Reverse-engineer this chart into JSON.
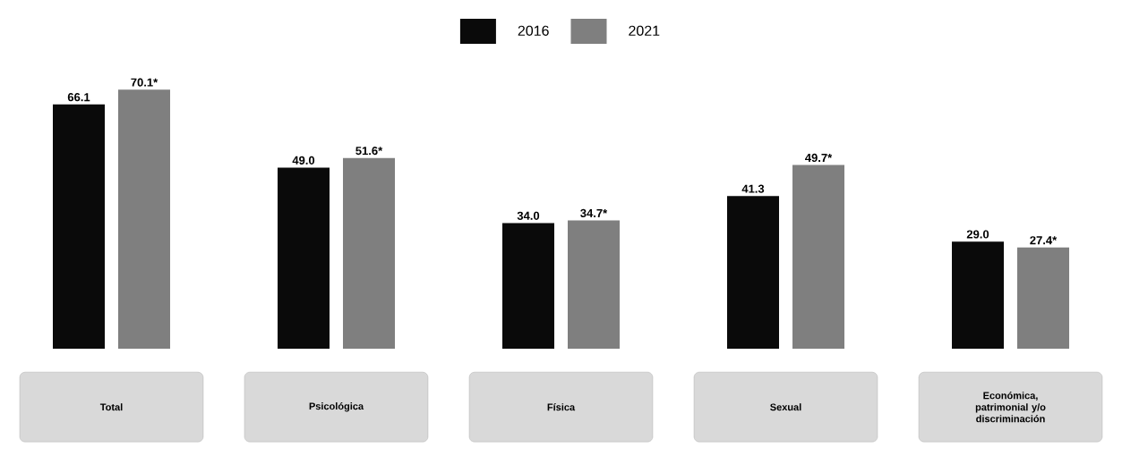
{
  "chart_data": {
    "type": "bar",
    "categories": [
      "Total",
      "Psicológica",
      "Física",
      "Sexual",
      "Económica, patrimonial y/o discriminación"
    ],
    "series": [
      {
        "name": "2016",
        "color": "#0a0a0a",
        "values": [
          66.1,
          49.0,
          34.0,
          41.3,
          29.0
        ],
        "value_labels": [
          "66.1",
          "49.0",
          "34.0",
          "41.3",
          "29.0"
        ]
      },
      {
        "name": "2021",
        "color": "#7f7f7f",
        "values": [
          70.1,
          51.6,
          34.7,
          49.7,
          27.4
        ],
        "value_labels": [
          "70.1*",
          "51.6*",
          "34.7*",
          "49.7*",
          "27.4*"
        ]
      }
    ],
    "legend": "top",
    "tick_labels": "x"
  }
}
